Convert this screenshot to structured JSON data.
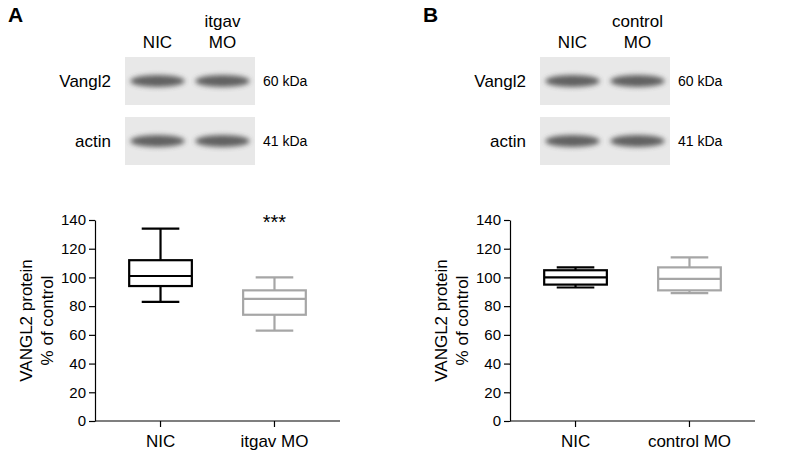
{
  "chart_data": [
    {
      "type": "box",
      "panel": "A",
      "categories": [
        "NIC",
        "itgav MO"
      ],
      "colors": [
        "#000000",
        "#a6a6a6"
      ],
      "boxes": [
        {
          "min": 83,
          "q1": 94,
          "median": 101,
          "q3": 112,
          "max": 134
        },
        {
          "min": 63,
          "q1": 74,
          "median": 85,
          "q3": 91,
          "max": 100
        }
      ],
      "y_label": [
        "VANGL2 protein",
        "% of control"
      ],
      "ylim": [
        0,
        140
      ],
      "yticks": [
        0,
        20,
        40,
        60,
        80,
        100,
        120,
        140
      ],
      "annotations": [
        {
          "text": "***",
          "category": "itgav MO"
        }
      ],
      "blot": {
        "rows": [
          {
            "label": "Vangl2",
            "size": "60 kDa"
          },
          {
            "label": "actin",
            "size": "41 kDa"
          }
        ]
      }
    },
    {
      "type": "box",
      "panel": "B",
      "categories": [
        "NIC",
        "control MO"
      ],
      "colors": [
        "#000000",
        "#a6a6a6"
      ],
      "boxes": [
        {
          "min": 93,
          "q1": 95,
          "median": 100,
          "q3": 105,
          "max": 107
        },
        {
          "min": 89,
          "q1": 91,
          "median": 99,
          "q3": 107,
          "max": 114
        }
      ],
      "y_label": [
        "VANGL2 protein",
        "% of control"
      ],
      "ylim": [
        0,
        140
      ],
      "yticks": [
        0,
        20,
        40,
        60,
        80,
        100,
        120,
        140
      ],
      "annotations": [],
      "blot": {
        "rows": [
          {
            "label": "Vangl2",
            "size": "60 kDa"
          },
          {
            "label": "actin",
            "size": "41 kDa"
          }
        ]
      }
    }
  ]
}
